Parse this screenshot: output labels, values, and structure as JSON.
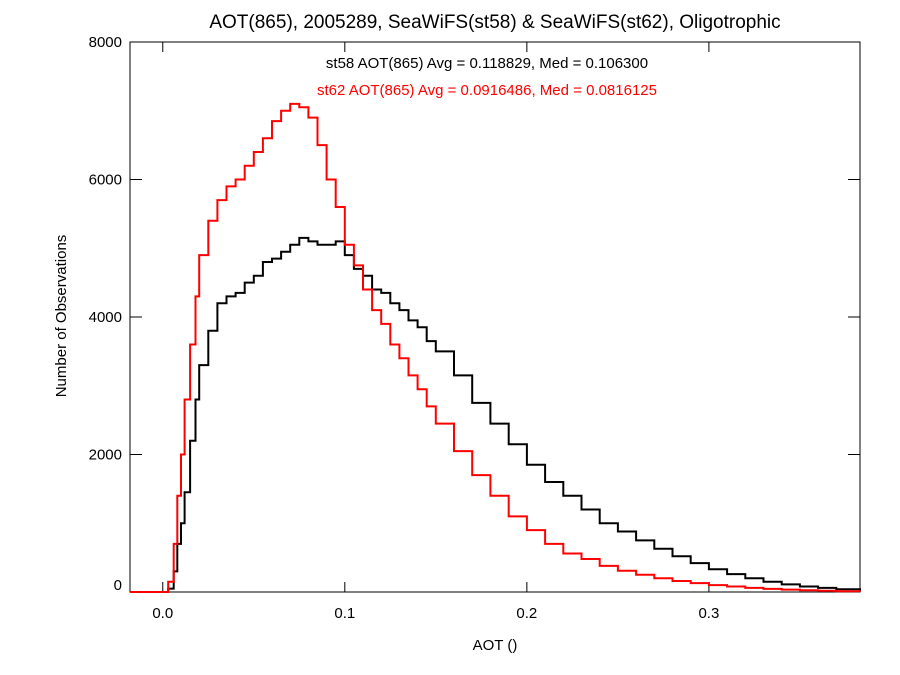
{
  "chart_data": {
    "type": "line",
    "title": "AOT(865), 2005289, SeaWiFS(st58) & SeaWiFS(st62), Oligotrophic",
    "xlabel": "AOT ()",
    "ylabel": "Number of Observations",
    "xlim": [
      -0.018,
      0.383
    ],
    "ylim": [
      0,
      8000
    ],
    "xticks": [
      0.0,
      0.1,
      0.2,
      0.3
    ],
    "xtick_labels": [
      "0.0",
      "0.1",
      "0.2",
      "0.3"
    ],
    "yticks": [
      0,
      2000,
      4000,
      6000,
      8000
    ],
    "ytick_labels": [
      "0",
      "2000",
      "4000",
      "6000",
      "8000"
    ],
    "grid": false,
    "annotations": [
      {
        "text": "st58 AOT(865) Avg = 0.118829, Med = 0.106300",
        "color": "#000000"
      },
      {
        "text": "st62 AOT(865) Avg = 0.0916486, Med = 0.0816125",
        "color": "#ff0000"
      }
    ],
    "series": [
      {
        "color": "#000000",
        "x": [
          -0.018,
          0.0,
          0.003,
          0.006,
          0.008,
          0.01,
          0.012,
          0.015,
          0.018,
          0.02,
          0.025,
          0.03,
          0.035,
          0.04,
          0.045,
          0.05,
          0.055,
          0.06,
          0.065,
          0.07,
          0.075,
          0.08,
          0.085,
          0.09,
          0.095,
          0.1,
          0.105,
          0.11,
          0.115,
          0.12,
          0.125,
          0.13,
          0.135,
          0.14,
          0.145,
          0.15,
          0.16,
          0.17,
          0.18,
          0.19,
          0.2,
          0.21,
          0.22,
          0.23,
          0.24,
          0.25,
          0.26,
          0.27,
          0.28,
          0.29,
          0.3,
          0.31,
          0.32,
          0.33,
          0.34,
          0.35,
          0.36,
          0.37,
          0.383
        ],
        "y": [
          0,
          0,
          50,
          300,
          700,
          1000,
          1450,
          2200,
          2800,
          3300,
          3800,
          4200,
          4300,
          4350,
          4500,
          4600,
          4800,
          4850,
          4950,
          5050,
          5150,
          5100,
          5050,
          5050,
          5100,
          4900,
          4700,
          4600,
          4400,
          4350,
          4200,
          4100,
          3950,
          3850,
          3650,
          3500,
          3150,
          2750,
          2450,
          2150,
          1850,
          1600,
          1400,
          1200,
          1000,
          880,
          750,
          630,
          520,
          420,
          330,
          260,
          200,
          150,
          110,
          80,
          60,
          40,
          20
        ]
      },
      {
        "color": "#ff0000",
        "x": [
          -0.018,
          0.0,
          0.003,
          0.006,
          0.008,
          0.01,
          0.012,
          0.015,
          0.018,
          0.02,
          0.025,
          0.03,
          0.035,
          0.04,
          0.045,
          0.05,
          0.055,
          0.06,
          0.065,
          0.07,
          0.075,
          0.08,
          0.085,
          0.09,
          0.095,
          0.1,
          0.105,
          0.11,
          0.115,
          0.12,
          0.125,
          0.13,
          0.135,
          0.14,
          0.145,
          0.15,
          0.16,
          0.17,
          0.18,
          0.19,
          0.2,
          0.21,
          0.22,
          0.23,
          0.24,
          0.25,
          0.26,
          0.27,
          0.28,
          0.29,
          0.3,
          0.31,
          0.32,
          0.33,
          0.34,
          0.35,
          0.36,
          0.37,
          0.383
        ],
        "y": [
          0,
          0,
          150,
          700,
          1400,
          2000,
          2800,
          3600,
          4300,
          4900,
          5400,
          5700,
          5900,
          6000,
          6200,
          6400,
          6600,
          6850,
          7000,
          7100,
          7050,
          6900,
          6500,
          6000,
          5600,
          5050,
          4750,
          4400,
          4100,
          3900,
          3600,
          3400,
          3150,
          2950,
          2700,
          2450,
          2050,
          1700,
          1400,
          1100,
          900,
          700,
          560,
          480,
          380,
          310,
          250,
          200,
          160,
          130,
          100,
          80,
          60,
          45,
          35,
          25,
          18,
          12,
          8
        ]
      }
    ]
  }
}
